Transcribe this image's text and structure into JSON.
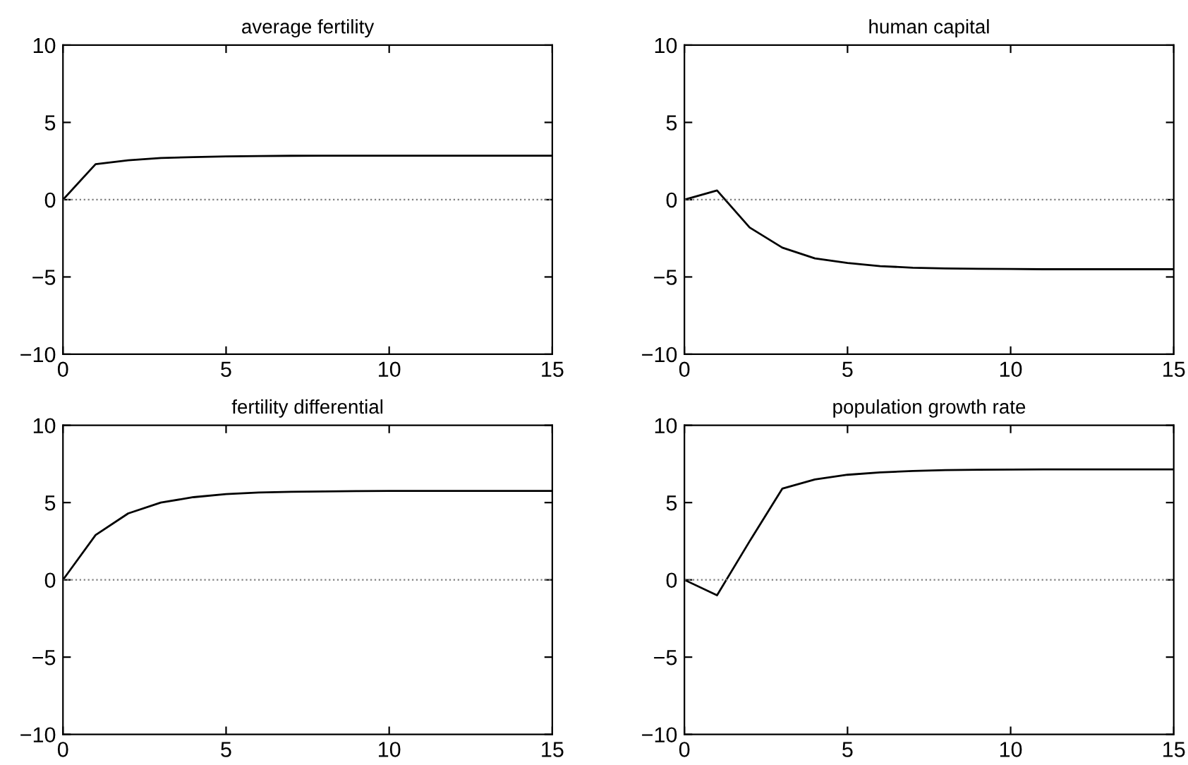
{
  "chart_data": [
    {
      "type": "line",
      "title": "average fertility",
      "x": [
        0,
        1,
        2,
        3,
        4,
        5,
        6,
        7,
        8,
        9,
        10,
        11,
        12,
        13,
        14,
        15
      ],
      "series": [
        {
          "color": "#000000",
          "values": [
            0,
            2.3,
            2.55,
            2.7,
            2.75,
            2.8,
            2.82,
            2.84,
            2.85,
            2.85,
            2.85,
            2.85,
            2.85,
            2.85,
            2.85,
            2.85
          ]
        }
      ],
      "xlim": [
        0,
        15
      ],
      "xticks": [
        0,
        5,
        10,
        15
      ],
      "ylim": [
        -10,
        10
      ],
      "yticks": [
        -10,
        -5,
        0,
        5,
        10
      ],
      "ref_lines": [
        {
          "axis": "y",
          "value": 0,
          "color": "#808080",
          "line_style": "dotted"
        }
      ]
    },
    {
      "type": "line",
      "title": "human capital",
      "x": [
        0,
        1,
        2,
        3,
        4,
        5,
        6,
        7,
        8,
        9,
        10,
        11,
        12,
        13,
        14,
        15
      ],
      "series": [
        {
          "color": "#000000",
          "values": [
            0,
            0.6,
            -1.8,
            -3.1,
            -3.8,
            -4.1,
            -4.3,
            -4.4,
            -4.45,
            -4.47,
            -4.48,
            -4.5,
            -4.5,
            -4.5,
            -4.5,
            -4.5
          ]
        }
      ],
      "xlim": [
        0,
        15
      ],
      "xticks": [
        0,
        5,
        10,
        15
      ],
      "ylim": [
        -10,
        10
      ],
      "yticks": [
        -10,
        -5,
        0,
        5,
        10
      ],
      "ref_lines": [
        {
          "axis": "y",
          "value": 0,
          "color": "#808080",
          "line_style": "dotted"
        }
      ]
    },
    {
      "type": "line",
      "title": "fertility differential",
      "x": [
        0,
        1,
        2,
        3,
        4,
        5,
        6,
        7,
        8,
        9,
        10,
        11,
        12,
        13,
        14,
        15
      ],
      "series": [
        {
          "color": "#000000",
          "values": [
            0,
            2.9,
            4.3,
            5.0,
            5.35,
            5.55,
            5.65,
            5.7,
            5.72,
            5.74,
            5.75,
            5.75,
            5.75,
            5.75,
            5.75,
            5.75
          ]
        }
      ],
      "xlim": [
        0,
        15
      ],
      "xticks": [
        0,
        5,
        10,
        15
      ],
      "ylim": [
        -10,
        10
      ],
      "yticks": [
        -10,
        -5,
        0,
        5,
        10
      ],
      "ref_lines": [
        {
          "axis": "y",
          "value": 0,
          "color": "#808080",
          "line_style": "dotted"
        }
      ]
    },
    {
      "type": "line",
      "title": "population growth rate",
      "x": [
        0,
        1,
        2,
        3,
        4,
        5,
        6,
        7,
        8,
        9,
        10,
        11,
        12,
        13,
        14,
        15
      ],
      "series": [
        {
          "color": "#000000",
          "values": [
            0,
            -1,
            2.5,
            5.9,
            6.5,
            6.8,
            6.95,
            7.05,
            7.1,
            7.12,
            7.14,
            7.15,
            7.15,
            7.15,
            7.15,
            7.15
          ]
        }
      ],
      "xlim": [
        0,
        15
      ],
      "xticks": [
        0,
        5,
        10,
        15
      ],
      "ylim": [
        -10,
        10
      ],
      "yticks": [
        -10,
        -5,
        0,
        5,
        10
      ],
      "ref_lines": [
        {
          "axis": "y",
          "value": 0,
          "color": "#808080",
          "line_style": "dotted"
        }
      ]
    }
  ]
}
